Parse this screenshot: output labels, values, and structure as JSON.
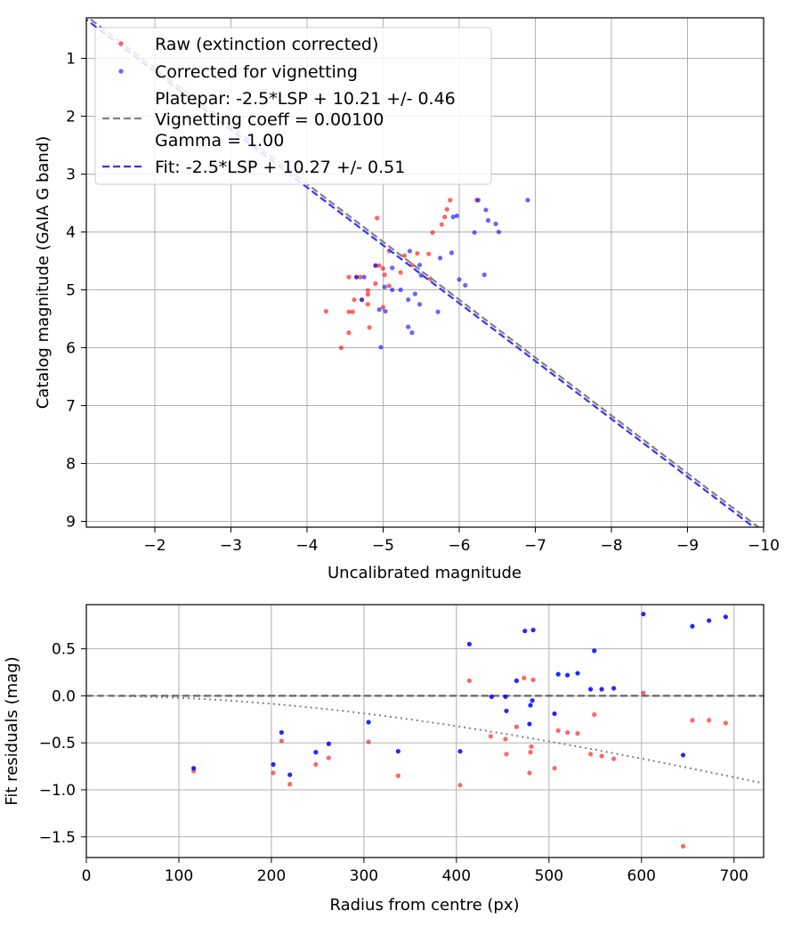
{
  "chart_data": [
    {
      "type": "scatter",
      "title": "",
      "xlabel": "Uncalibrated magnitude",
      "ylabel": "Catalog magnitude (GAIA G band)",
      "xlim": [
        -1.1,
        -10.0
      ],
      "ylim": [
        9.1,
        0.3
      ],
      "x_inverted": true,
      "y_inverted": true,
      "grid": true,
      "xticks": [
        -2,
        -3,
        -4,
        -5,
        -6,
        -7,
        -8,
        -9,
        -10
      ],
      "xtick_labels": [
        "−2",
        "−3",
        "−4",
        "−5",
        "−6",
        "−7",
        "−8",
        "−9",
        "−10"
      ],
      "yticks": [
        1,
        2,
        3,
        4,
        5,
        6,
        7,
        8,
        9
      ],
      "ytick_labels": [
        "1",
        "2",
        "3",
        "4",
        "5",
        "6",
        "7",
        "8",
        "9"
      ],
      "legend_position": "top-left",
      "legend": [
        {
          "label": "Raw (extinction corrected)",
          "marker": "dot",
          "color": "#ff0000"
        },
        {
          "label": "Corrected for vignetting",
          "marker": "dot",
          "color": "#0000ff"
        },
        {
          "label": "Platepar: -2.5*LSP + 10.21 +/- 0.46\nVignetting coeff = 0.00100\nGamma = 1.00",
          "marker": "dashed-line",
          "color": "#808080"
        },
        {
          "label": "Fit: -2.5*LSP + 10.27 +/- 0.51",
          "marker": "dashed-line",
          "color": "#3333ff"
        }
      ],
      "lines": [
        {
          "name": "Platepar",
          "slope": -1.0,
          "intercept": -0.83,
          "color": "#808080",
          "style": "dashed"
        },
        {
          "name": "Fit",
          "slope": -1.0,
          "intercept": -0.77,
          "color": "#3333ff",
          "style": "dashed"
        }
      ],
      "series": [
        {
          "name": "Raw (extinction corrected)",
          "color": "#ff0000",
          "points": [
            [
              -5.88,
              3.45
            ],
            [
              -5.84,
              3.61
            ],
            [
              -5.81,
              3.74
            ],
            [
              -5.77,
              3.87
            ],
            [
              -5.65,
              4.01
            ],
            [
              -4.92,
              3.76
            ],
            [
              -5.08,
              4.33
            ],
            [
              -5.28,
              4.41
            ],
            [
              -5.45,
              4.37
            ],
            [
              -5.62,
              4.81
            ],
            [
              -4.55,
              4.78
            ],
            [
              -4.65,
              4.78
            ],
            [
              -4.7,
              4.78
            ],
            [
              -4.9,
              4.58
            ],
            [
              -4.95,
              4.58
            ],
            [
              -5.0,
              4.63
            ],
            [
              -5.02,
              4.74
            ],
            [
              -5.23,
              4.7
            ],
            [
              -5.38,
              4.57
            ],
            [
              -4.62,
              5.17
            ],
            [
              -4.72,
              5.17
            ],
            [
              -4.8,
              5.01
            ],
            [
              -4.8,
              5.08
            ],
            [
              -4.8,
              5.25
            ],
            [
              -4.9,
              4.89
            ],
            [
              -5.08,
              4.93
            ],
            [
              -4.25,
              5.37
            ],
            [
              -4.55,
              5.38
            ],
            [
              -4.6,
              5.38
            ],
            [
              -4.82,
              5.65
            ],
            [
              -4.55,
              5.74
            ],
            [
              -4.45,
              6.0
            ],
            [
              -5.6,
              4.38
            ],
            [
              -6.23,
              3.45
            ],
            [
              -5.0,
              5.3
            ]
          ]
        },
        {
          "name": "Corrected for vignetting",
          "color": "#0000ff",
          "points": [
            [
              -6.25,
              3.45
            ],
            [
              -6.9,
              3.45
            ],
            [
              -6.35,
              3.62
            ],
            [
              -5.92,
              3.74
            ],
            [
              -5.97,
              3.72
            ],
            [
              -6.2,
              4.01
            ],
            [
              -6.38,
              3.8
            ],
            [
              -6.48,
              3.86
            ],
            [
              -6.52,
              4.0
            ],
            [
              -5.9,
              4.36
            ],
            [
              -5.75,
              4.45
            ],
            [
              -5.35,
              4.33
            ],
            [
              -5.48,
              4.57
            ],
            [
              -5.5,
              4.75
            ],
            [
              -5.12,
              4.62
            ],
            [
              -4.75,
              4.78
            ],
            [
              -5.23,
              5.0
            ],
            [
              -5.12,
              5.0
            ],
            [
              -5.02,
              4.95
            ],
            [
              -5.42,
              5.07
            ],
            [
              -5.33,
              5.17
            ],
            [
              -5.48,
              5.25
            ],
            [
              -4.72,
              5.17
            ],
            [
              -5.72,
              5.38
            ],
            [
              -6.0,
              4.82
            ],
            [
              -6.08,
              4.92
            ],
            [
              -6.33,
              4.74
            ],
            [
              -4.95,
              5.34
            ],
            [
              -5.03,
              5.37
            ],
            [
              -5.33,
              5.64
            ],
            [
              -5.38,
              5.74
            ],
            [
              -4.97,
              5.99
            ],
            [
              -4.9,
              4.58
            ],
            [
              -4.65,
              4.78
            ]
          ]
        }
      ]
    },
    {
      "type": "scatter",
      "title": "",
      "xlabel": "Radius from centre (px)",
      "ylabel": "Fit residuals (mag)",
      "xlim": [
        0,
        732
      ],
      "ylim": [
        -1.72,
        0.97
      ],
      "grid": true,
      "xticks": [
        0,
        100,
        200,
        300,
        400,
        500,
        600,
        700
      ],
      "xtick_labels": [
        "0",
        "100",
        "200",
        "300",
        "400",
        "500",
        "600",
        "700"
      ],
      "yticks": [
        0.5,
        0.0,
        -0.5,
        -1.0,
        -1.5
      ],
      "ytick_labels": [
        "0.5",
        "0.0",
        "−0.5",
        "−1.0",
        "−1.5"
      ],
      "reference_line": {
        "y": 0.0,
        "color": "#666666",
        "style": "dashed"
      },
      "vignetting_curve": {
        "coeff": 0.001,
        "color": "#808080",
        "style": "dotted"
      },
      "series": [
        {
          "name": "Raw (extinction corrected)",
          "color": "#ff0000",
          "points": [
            [
              116,
              -0.8
            ],
            [
              202,
              -0.82
            ],
            [
              211,
              -0.48
            ],
            [
              220,
              -0.94
            ],
            [
              248,
              -0.73
            ],
            [
              262,
              -0.66
            ],
            [
              305,
              -0.49
            ],
            [
              337,
              -0.85
            ],
            [
              404,
              -0.95
            ],
            [
              414,
              0.16
            ],
            [
              437,
              -0.43
            ],
            [
              453,
              -0.46
            ],
            [
              454,
              -0.62
            ],
            [
              465,
              -0.33
            ],
            [
              473,
              0.19
            ],
            [
              479,
              -0.82
            ],
            [
              480,
              -0.6
            ],
            [
              481,
              -0.54
            ],
            [
              483,
              0.17
            ],
            [
              506,
              -0.77
            ],
            [
              510,
              -0.37
            ],
            [
              520,
              -0.39
            ],
            [
              531,
              -0.4
            ],
            [
              545,
              -0.62
            ],
            [
              549,
              -0.2
            ],
            [
              557,
              -0.64
            ],
            [
              570,
              -0.67
            ],
            [
              602,
              0.03
            ],
            [
              645,
              -1.6
            ],
            [
              655,
              -0.26
            ],
            [
              673,
              -0.26
            ],
            [
              691,
              -0.29
            ]
          ]
        },
        {
          "name": "Corrected for vignetting",
          "color": "#0000ff",
          "points": [
            [
              116,
              -0.77
            ],
            [
              202,
              -0.73
            ],
            [
              211,
              -0.39
            ],
            [
              220,
              -0.84
            ],
            [
              248,
              -0.6
            ],
            [
              262,
              -0.51
            ],
            [
              305,
              -0.28
            ],
            [
              337,
              -0.59
            ],
            [
              404,
              -0.59
            ],
            [
              414,
              0.55
            ],
            [
              438,
              -0.01
            ],
            [
              453,
              -0.01
            ],
            [
              454,
              -0.16
            ],
            [
              465,
              0.16
            ],
            [
              474,
              0.69
            ],
            [
              479,
              -0.3
            ],
            [
              480,
              -0.1
            ],
            [
              482,
              -0.05
            ],
            [
              483,
              0.7
            ],
            [
              506,
              -0.19
            ],
            [
              510,
              0.23
            ],
            [
              520,
              0.22
            ],
            [
              531,
              0.24
            ],
            [
              545,
              0.07
            ],
            [
              549,
              0.48
            ],
            [
              557,
              0.07
            ],
            [
              570,
              0.08
            ],
            [
              602,
              0.87
            ],
            [
              645,
              -0.63
            ],
            [
              655,
              0.74
            ],
            [
              673,
              0.8
            ],
            [
              691,
              0.84
            ]
          ]
        }
      ]
    }
  ]
}
